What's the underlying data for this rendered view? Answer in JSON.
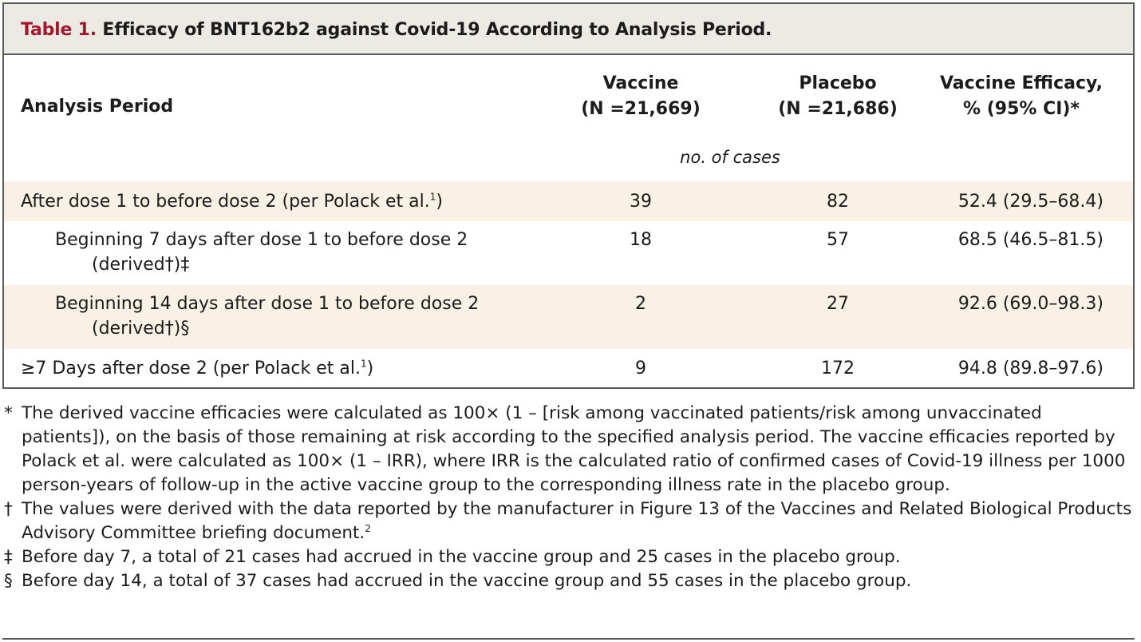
{
  "table": {
    "title_label": "Table 1.",
    "title_text": " Efficacy of BNT162b2 against Covid-19 According to Analysis Period.",
    "headers": {
      "analysis_period": "Analysis Period",
      "vaccine_line1": "Vaccine",
      "vaccine_line2": "(N =21,669)",
      "placebo_line1": "Placebo",
      "placebo_line2": "(N =21,686)",
      "efficacy_line1": "Vaccine Efficacy,",
      "efficacy_line2": "% (95% CI)*"
    },
    "subheader": "no. of cases",
    "rows": [
      {
        "label": "After dose 1 to before dose 2 (per Polack et al.",
        "ref": "1",
        "label_end": ")",
        "vaccine": "39",
        "placebo": "82",
        "efficacy": "52.4 (29.5–68.4)"
      },
      {
        "label": "Beginning 7 days after dose 1 to before dose 2",
        "label_cont": "(derived†)‡",
        "vaccine": "18",
        "placebo": "57",
        "efficacy": "68.5 (46.5–81.5)"
      },
      {
        "label": "Beginning 14 days after dose 1 to before dose 2",
        "label_cont": "(derived†)§",
        "vaccine": "2",
        "placebo": "27",
        "efficacy": "92.6 (69.0–98.3)"
      },
      {
        "label": "≥7 Days after dose 2 (per Polack et al.",
        "ref": "1",
        "label_end": ")",
        "vaccine": "9",
        "placebo": "172",
        "efficacy": "94.8 (89.8–97.6)"
      }
    ]
  },
  "footnotes": [
    {
      "symbol": "*",
      "text": "The derived vaccine efficacies were calculated as 100× (1 – [risk among vaccinated patients/risk among unvaccinated patients]), on the basis of those remaining at risk according to the specified analysis period. The vaccine efficacies reported by Polack et al. were calculated as 100× (1 – IRR), where IRR is the calculated ratio of confirmed cases of Covid-19 illness per 1000 person-years of follow-up in the active vaccine group to the corresponding illness rate in the placebo group."
    },
    {
      "symbol": "†",
      "text": "The values were derived with the data reported by the manufacturer in Figure 13 of the Vaccines and Related Biological Products Advisory Committee briefing document.",
      "ref": "2"
    },
    {
      "symbol": "‡",
      "text": "Before day 7, a total of 21 cases had accrued in the vaccine group and 25 cases in the placebo group."
    },
    {
      "symbol": "§",
      "text": "Before day 14, a total of 37 cases had accrued in the vaccine group and 55 cases in the placebo group."
    }
  ],
  "colors": {
    "title_label": "#a3182c",
    "header_band": "#eceae4",
    "row_shade": "#f9f1e6",
    "rule": "#5a5a5a"
  }
}
